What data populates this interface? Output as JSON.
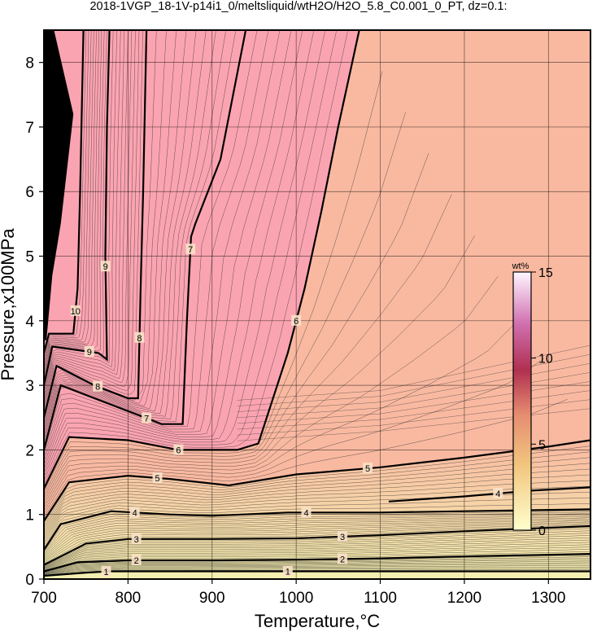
{
  "title": "2018-1VGP_18-1V-p14i1_0/meltsliquid/wtH2O/H2O_5.8_C0.001_0_PT, dz=0.1:",
  "colors": {
    "plateau": "#f9b9a1",
    "high": "#fba4b1",
    "low": "#f7eab0",
    "black": "#000000"
  },
  "chart_data": {
    "type": "contour",
    "xlabel": "Temperature,°C",
    "ylabel": "Pressure,x100MPa",
    "xlim": [
      700,
      1350
    ],
    "ylim": [
      0,
      8.5
    ],
    "xticks": [
      700,
      800,
      900,
      1000,
      1100,
      1200,
      1300
    ],
    "yticks": [
      0,
      1,
      2,
      3,
      4,
      5,
      6,
      7,
      8
    ],
    "grid": true,
    "colorbar": {
      "title": "wt%",
      "range": [
        0,
        15
      ],
      "ticks": [
        0,
        5,
        10,
        15
      ]
    },
    "contours": [
      {
        "level": 1,
        "points": [
          [
            700,
            0.05
          ],
          [
            750,
            0.1
          ],
          [
            780,
            0.12
          ],
          [
            900,
            0.12
          ],
          [
            1000,
            0.12
          ],
          [
            1100,
            0.12
          ],
          [
            1350,
            0.12
          ]
        ]
      },
      {
        "level": 2,
        "points": [
          [
            700,
            0.12
          ],
          [
            740,
            0.26
          ],
          [
            800,
            0.29
          ],
          [
            900,
            0.29
          ],
          [
            1000,
            0.3
          ],
          [
            1100,
            0.32
          ],
          [
            1200,
            0.35
          ],
          [
            1350,
            0.39
          ]
        ]
      },
      {
        "level": 3,
        "points": [
          [
            700,
            0.22
          ],
          [
            750,
            0.55
          ],
          [
            800,
            0.62
          ],
          [
            900,
            0.62
          ],
          [
            1000,
            0.63
          ],
          [
            1100,
            0.68
          ],
          [
            1200,
            0.74
          ],
          [
            1350,
            0.82
          ]
        ]
      },
      {
        "level": 4,
        "points": [
          [
            700,
            0.45
          ],
          [
            720,
            0.85
          ],
          [
            780,
            1.05
          ],
          [
            850,
            1.0
          ],
          [
            900,
            0.98
          ],
          [
            990,
            1.03
          ],
          [
            1100,
            1.03
          ],
          [
            1200,
            1.05
          ],
          [
            1350,
            1.08
          ]
        ]
      },
      {
        "level": 4,
        "points": [
          [
            1110,
            1.2
          ],
          [
            1200,
            1.28
          ],
          [
            1280,
            1.37
          ],
          [
            1350,
            1.42
          ]
        ]
      },
      {
        "level": 5,
        "points": [
          [
            700,
            0.9
          ],
          [
            730,
            1.5
          ],
          [
            800,
            1.6
          ],
          [
            850,
            1.55
          ],
          [
            920,
            1.45
          ],
          [
            1000,
            1.62
          ],
          [
            1100,
            1.73
          ],
          [
            1200,
            1.88
          ],
          [
            1300,
            2.05
          ],
          [
            1350,
            2.15
          ]
        ]
      },
      {
        "level": 6,
        "points": [
          [
            700,
            1.4
          ],
          [
            730,
            2.2
          ],
          [
            800,
            2.15
          ],
          [
            860,
            2.0
          ],
          [
            930,
            2.0
          ],
          [
            955,
            2.1
          ],
          [
            990,
            3.5
          ],
          [
            1010,
            4.5
          ],
          [
            1030,
            5.7
          ],
          [
            1050,
            7.0
          ],
          [
            1075,
            8.5
          ]
        ]
      },
      {
        "level": 7,
        "points": [
          [
            700,
            2.0
          ],
          [
            720,
            3.0
          ],
          [
            780,
            2.7
          ],
          [
            840,
            2.4
          ],
          [
            865,
            2.4
          ],
          [
            870,
            4.0
          ],
          [
            875,
            5.3
          ],
          [
            880,
            5.5
          ],
          [
            910,
            6.5
          ],
          [
            940,
            8.5
          ]
        ]
      },
      {
        "level": 8,
        "points": [
          [
            700,
            2.5
          ],
          [
            715,
            3.3
          ],
          [
            760,
            3.0
          ],
          [
            800,
            2.8
          ],
          [
            812,
            2.8
          ],
          [
            815,
            4.5
          ],
          [
            818,
            6.0
          ],
          [
            822,
            8.5
          ]
        ]
      },
      {
        "level": 9,
        "points": [
          [
            700,
            3.0
          ],
          [
            710,
            3.6
          ],
          [
            765,
            3.5
          ],
          [
            775,
            3.4
          ],
          [
            773,
            5.0
          ],
          [
            775,
            7.0
          ],
          [
            778,
            8.5
          ]
        ]
      },
      {
        "level": 10,
        "points": [
          [
            700,
            3.5
          ],
          [
            706,
            3.8
          ],
          [
            735,
            3.8
          ],
          [
            740,
            4.5
          ],
          [
            743,
            6.0
          ],
          [
            747,
            8.5
          ]
        ]
      }
    ]
  }
}
